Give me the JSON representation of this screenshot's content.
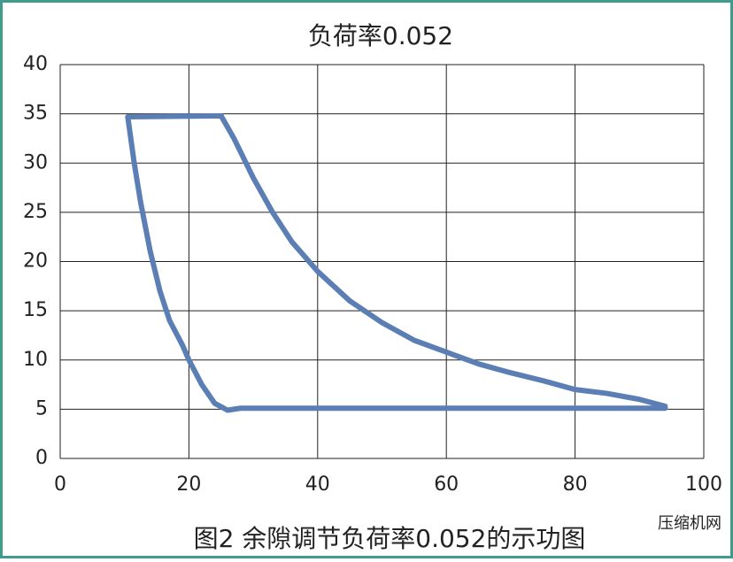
{
  "chart_data": {
    "type": "line",
    "title": "负荷率0.052",
    "x": [
      10.5,
      25,
      27,
      30,
      33,
      36,
      40,
      45,
      50,
      55,
      60,
      65,
      70,
      75,
      80,
      85,
      90,
      94,
      94,
      60,
      40,
      28,
      26,
      24,
      22,
      20,
      19,
      17,
      15.5,
      14,
      12.5,
      11.5,
      10.5
    ],
    "series": [
      {
        "name": "示功图",
        "color": "#5b7fb5",
        "values": [
          34.7,
          34.8,
          32.5,
          28.5,
          25,
          22,
          19,
          16,
          13.8,
          12,
          10.8,
          9.6,
          8.7,
          7.9,
          7,
          6.6,
          6,
          5.3,
          5.1,
          5.1,
          5.1,
          5.1,
          4.9,
          5.6,
          7.5,
          10,
          11.5,
          14,
          17,
          21,
          26,
          30,
          34.7
        ]
      }
    ],
    "xlim": [
      0,
      100
    ],
    "xticks": [
      0,
      20,
      40,
      60,
      80,
      100
    ],
    "ylim": [
      0,
      40
    ],
    "yticks": [
      0,
      5,
      10,
      15,
      20,
      25,
      30,
      35,
      40
    ],
    "grid": true
  },
  "caption": "图2 余隙调节负荷率0.052的示功图",
  "watermark": "压缩机网"
}
